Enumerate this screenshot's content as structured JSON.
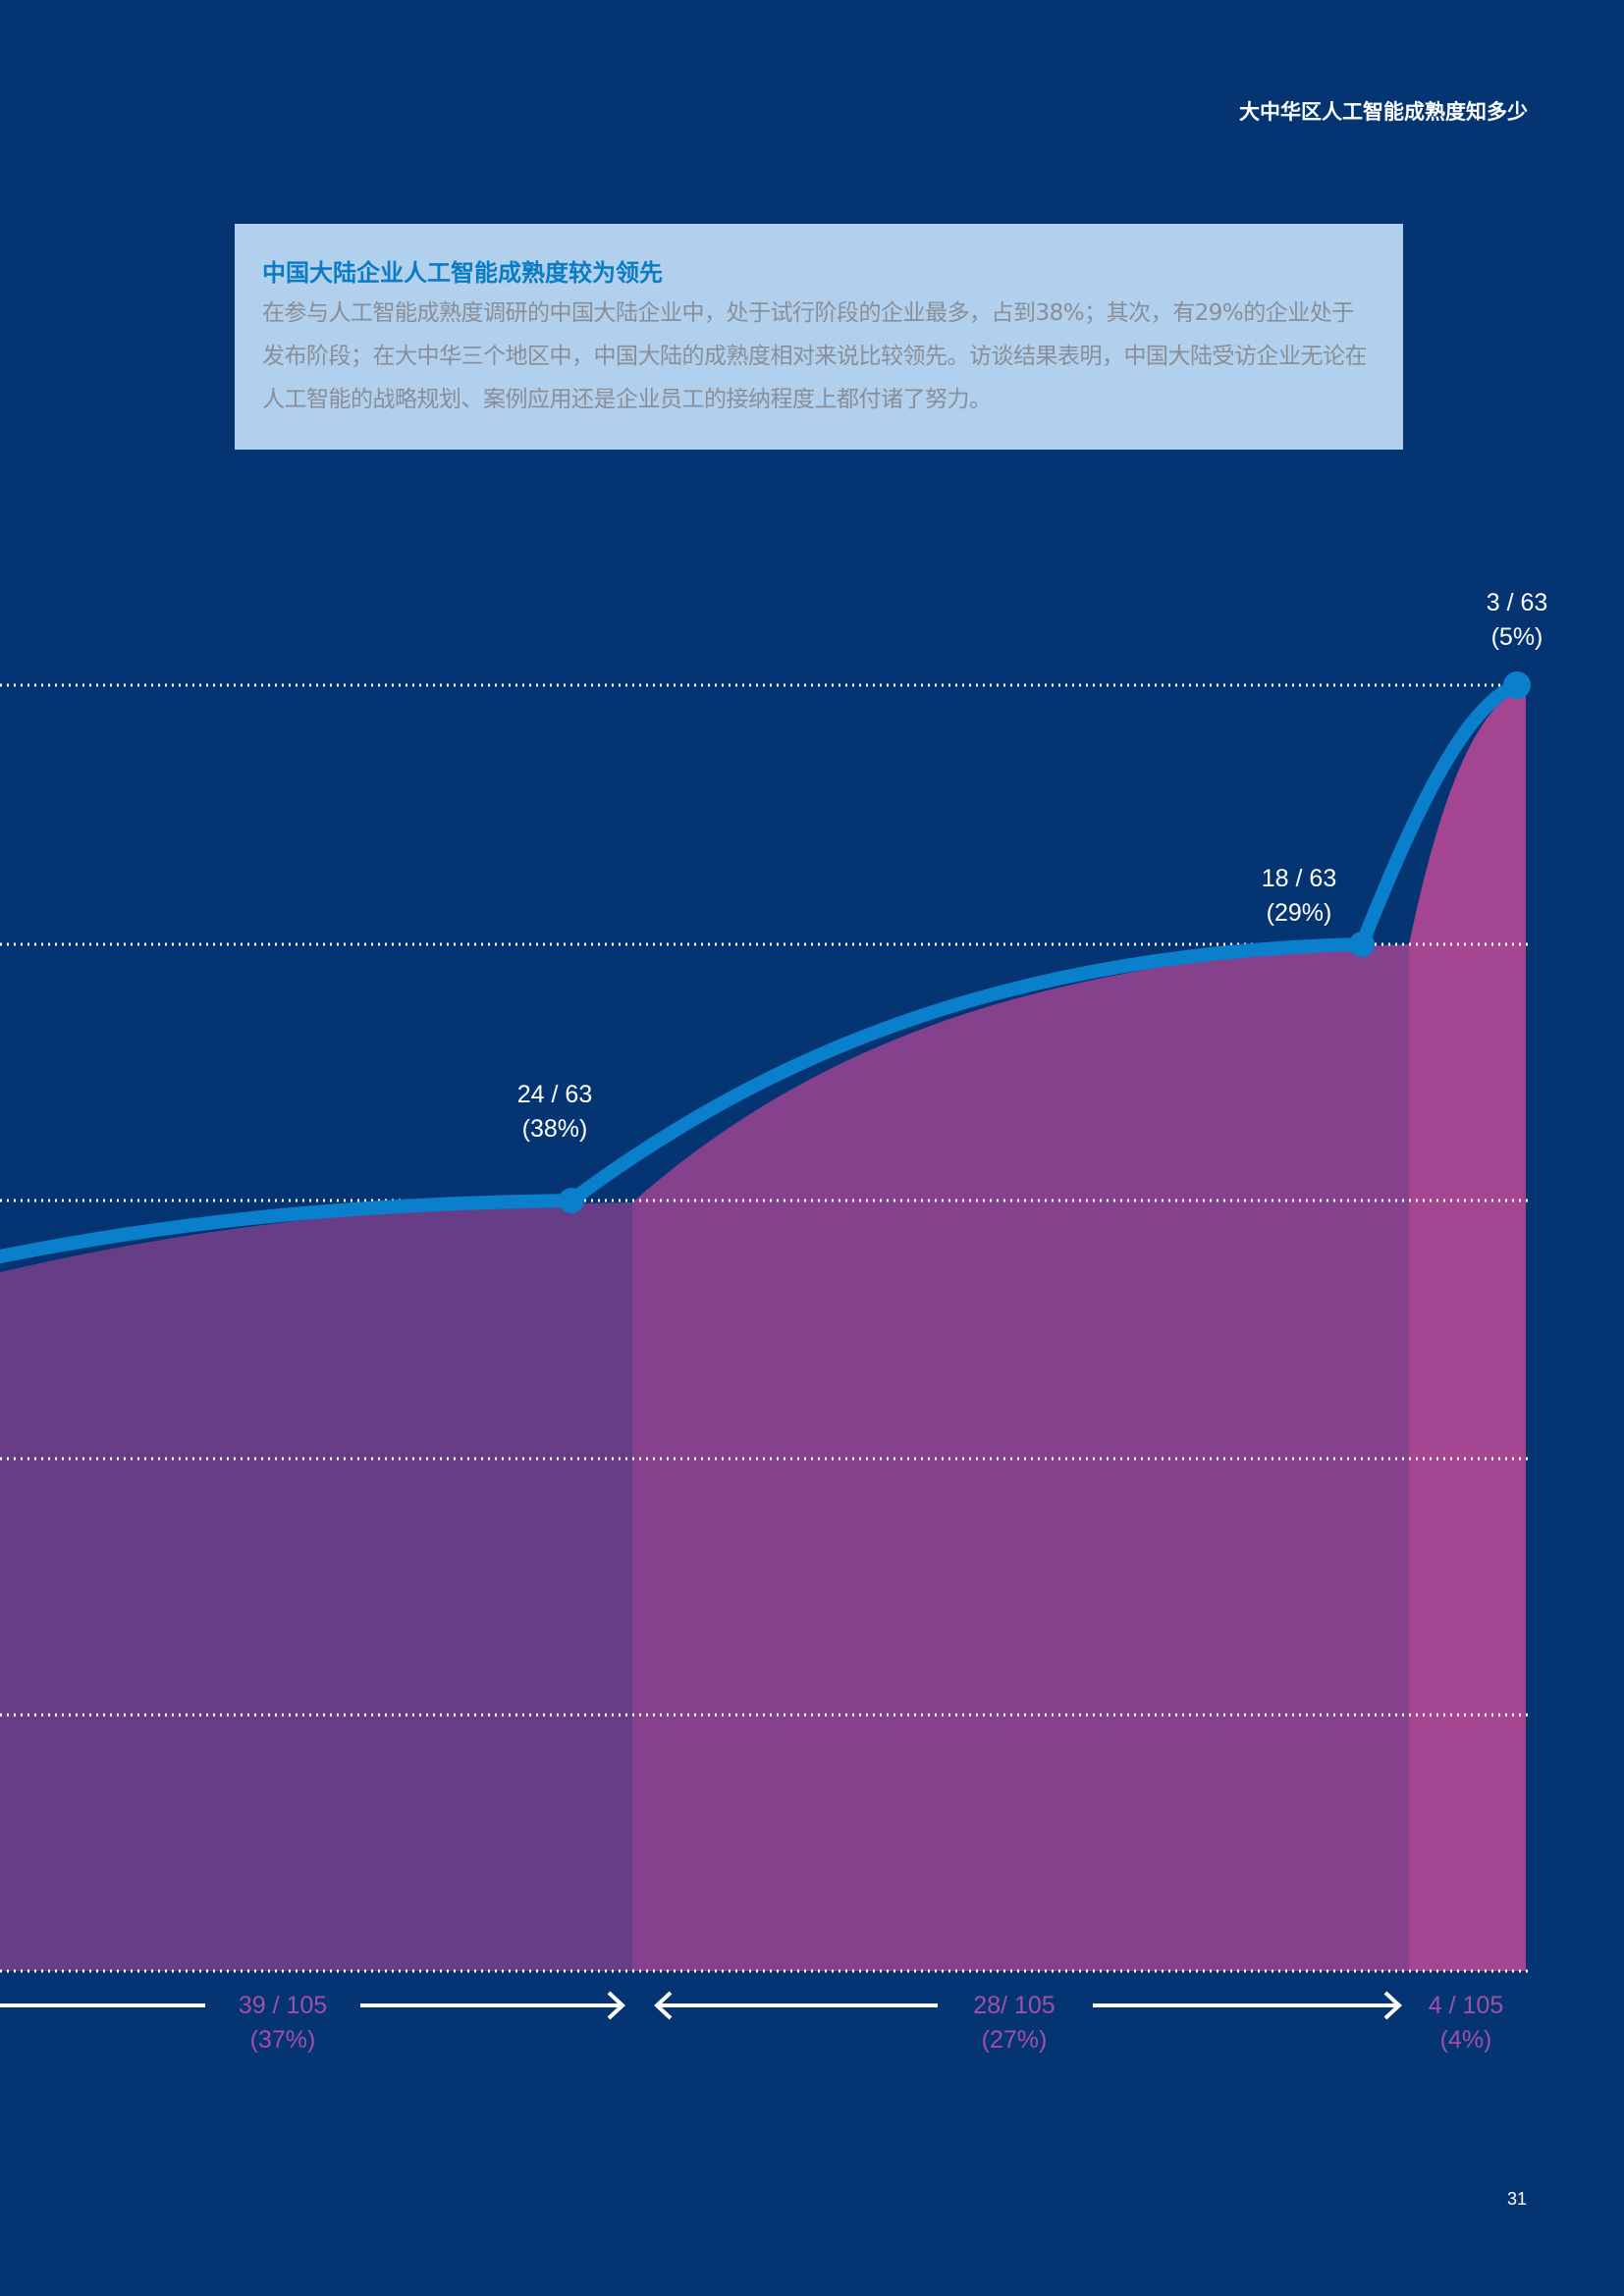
{
  "header": {
    "title": "大中华区人工智能成熟度知多少"
  },
  "callout": {
    "title": "中国大陆企业人工智能成熟度较为领先",
    "body": "在参与人工智能成熟度调研的中国大陆企业中，处于试行阶段的企业最多，占到38%；其次，有29%的企业处于发布阶段；在大中华三个地区中，中国大陆的成熟度相对来说比较领先。访谈结果表明，中国大陆受访企业无论在人工智能的战略规划、案例应用还是企业员工的接纳程度上都付诸了努力。"
  },
  "chart_data": {
    "type": "area",
    "grid": true,
    "line_points": [
      {
        "label": "24 / 63",
        "pct": "(38%)",
        "value": 38
      },
      {
        "label": "18 / 63",
        "pct": "(29%)",
        "value": 29
      },
      {
        "label": "3 / 63",
        "pct": "(5%)",
        "value": 5
      }
    ],
    "segments": [
      {
        "label": "39 / 105",
        "pct": "(37%)",
        "value": 37,
        "color": "#673d87"
      },
      {
        "label": "28/ 105",
        "pct": "(27%)",
        "value": 27,
        "color": "#86418c"
      },
      {
        "label": "4 / 105",
        "pct": "(4%)",
        "value": 4,
        "color": "#a44592"
      }
    ],
    "colors": {
      "line": "#0a80cc",
      "grid": "#ffffff",
      "segment_label": "#a34fa6"
    }
  },
  "page": {
    "number": "31"
  }
}
